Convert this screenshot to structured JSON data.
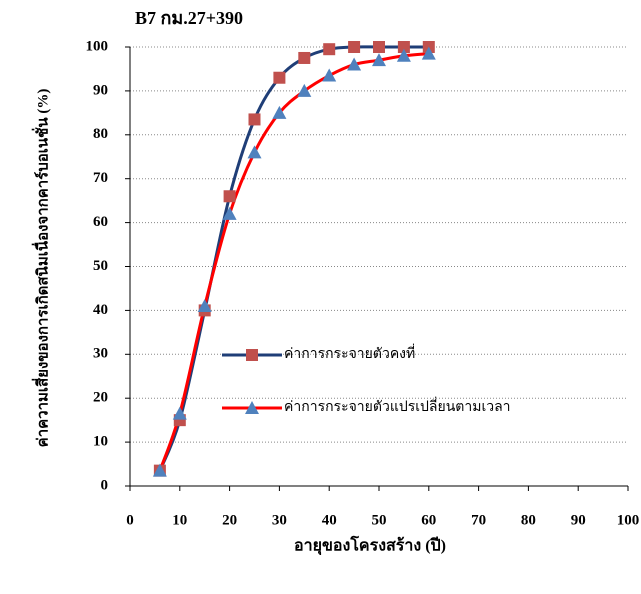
{
  "chart_data": {
    "type": "line",
    "title": "B7 กม.27+390",
    "x_label": "อายุของโครงสร้าง (ปี)",
    "y_label": "ค่าความเสี่ยงของการเกิดสนิมเนื่องจากคาร์บอเนชั่น (%)",
    "x": [
      6,
      10,
      15,
      20,
      25,
      30,
      35,
      40,
      45,
      50,
      55,
      60
    ],
    "series": [
      {
        "name": "ค่าการกระจายตัวคงที่",
        "color": "#1f3e77",
        "marker_color": "#c0504d",
        "marker": "square",
        "values": [
          3.5,
          15,
          40,
          66,
          83.5,
          93,
          97.5,
          99.5,
          100,
          100,
          100,
          100
        ]
      },
      {
        "name": "ค่าการกระจายตัวแปรเปลี่ยนตามเวลา",
        "color": "#ff0000",
        "marker_color": "#4f81bd",
        "marker": "triangle",
        "values": [
          3.5,
          16.5,
          41,
          62,
          76,
          85,
          90,
          93.5,
          96,
          97,
          98,
          98.5
        ]
      }
    ],
    "xlim": [
      0,
      100
    ],
    "xticks": [
      0,
      10,
      20,
      30,
      40,
      50,
      60,
      70,
      80,
      90,
      100
    ],
    "ylim": [
      0,
      100
    ],
    "yticks": [
      0,
      10,
      20,
      30,
      40,
      50,
      60,
      70,
      80,
      90,
      100
    ],
    "grid": true
  }
}
